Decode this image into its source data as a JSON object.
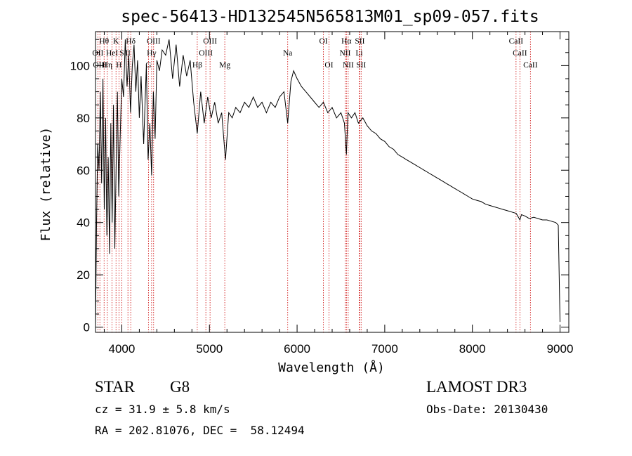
{
  "chart_data": {
    "type": "line",
    "title": "spec-56413-HD132545N565813M01_sp09-057.fits",
    "xlabel": "Wavelength (Å)",
    "ylabel": "Flux (relative)",
    "xlim": [
      3700,
      9100
    ],
    "ylim": [
      -2,
      113
    ],
    "xticks": [
      4000,
      5000,
      6000,
      7000,
      8000,
      9000
    ],
    "yticks": [
      0,
      20,
      40,
      60,
      80,
      100
    ],
    "series": [
      {
        "name": "spectrum",
        "color": "#000000",
        "points": [
          [
            3700,
            0
          ],
          [
            3712,
            40
          ],
          [
            3725,
            70
          ],
          [
            3740,
            60
          ],
          [
            3755,
            90
          ],
          [
            3770,
            55
          ],
          [
            3785,
            95
          ],
          [
            3800,
            45
          ],
          [
            3815,
            80
          ],
          [
            3830,
            35
          ],
          [
            3845,
            65
          ],
          [
            3860,
            28
          ],
          [
            3875,
            78
          ],
          [
            3890,
            40
          ],
          [
            3905,
            85
          ],
          [
            3920,
            30
          ],
          [
            3935,
            60
          ],
          [
            3950,
            90
          ],
          [
            3965,
            50
          ],
          [
            3980,
            70
          ],
          [
            4000,
            95
          ],
          [
            4020,
            88
          ],
          [
            4040,
            110
          ],
          [
            4060,
            92
          ],
          [
            4080,
            104
          ],
          [
            4100,
            82
          ],
          [
            4120,
            100
          ],
          [
            4140,
            108
          ],
          [
            4160,
            90
          ],
          [
            4180,
            102
          ],
          [
            4200,
            80
          ],
          [
            4220,
            96
          ],
          [
            4250,
            70
          ],
          [
            4280,
            100
          ],
          [
            4300,
            64
          ],
          [
            4320,
            78
          ],
          [
            4340,
            58
          ],
          [
            4360,
            90
          ],
          [
            4380,
            72
          ],
          [
            4400,
            102
          ],
          [
            4430,
            98
          ],
          [
            4460,
            106
          ],
          [
            4500,
            104
          ],
          [
            4540,
            110
          ],
          [
            4580,
            95
          ],
          [
            4620,
            108
          ],
          [
            4660,
            92
          ],
          [
            4700,
            104
          ],
          [
            4740,
            96
          ],
          [
            4780,
            102
          ],
          [
            4820,
            86
          ],
          [
            4861,
            74
          ],
          [
            4900,
            90
          ],
          [
            4940,
            78
          ],
          [
            4980,
            88
          ],
          [
            5020,
            80
          ],
          [
            5060,
            86
          ],
          [
            5100,
            78
          ],
          [
            5140,
            82
          ],
          [
            5183,
            64
          ],
          [
            5220,
            82
          ],
          [
            5260,
            80
          ],
          [
            5300,
            84
          ],
          [
            5350,
            82
          ],
          [
            5400,
            86
          ],
          [
            5450,
            84
          ],
          [
            5500,
            88
          ],
          [
            5550,
            84
          ],
          [
            5600,
            86
          ],
          [
            5650,
            82
          ],
          [
            5700,
            86
          ],
          [
            5750,
            84
          ],
          [
            5800,
            88
          ],
          [
            5850,
            90
          ],
          [
            5893,
            78
          ],
          [
            5930,
            94
          ],
          [
            5960,
            98
          ],
          [
            6000,
            95
          ],
          [
            6050,
            92
          ],
          [
            6100,
            90
          ],
          [
            6150,
            88
          ],
          [
            6200,
            86
          ],
          [
            6250,
            84
          ],
          [
            6300,
            86
          ],
          [
            6350,
            82
          ],
          [
            6400,
            84
          ],
          [
            6450,
            80
          ],
          [
            6500,
            82
          ],
          [
            6540,
            78
          ],
          [
            6563,
            66
          ],
          [
            6580,
            82
          ],
          [
            6620,
            80
          ],
          [
            6660,
            82
          ],
          [
            6700,
            78
          ],
          [
            6750,
            80
          ],
          [
            6800,
            77
          ],
          [
            6850,
            75
          ],
          [
            6900,
            74
          ],
          [
            6950,
            72
          ],
          [
            7000,
            71
          ],
          [
            7050,
            69
          ],
          [
            7100,
            68
          ],
          [
            7150,
            66
          ],
          [
            7200,
            65
          ],
          [
            7250,
            64
          ],
          [
            7300,
            63
          ],
          [
            7350,
            62
          ],
          [
            7400,
            61
          ],
          [
            7450,
            60
          ],
          [
            7500,
            59
          ],
          [
            7550,
            58
          ],
          [
            7600,
            57
          ],
          [
            7650,
            56
          ],
          [
            7700,
            55
          ],
          [
            7750,
            54
          ],
          [
            7800,
            53
          ],
          [
            7850,
            52
          ],
          [
            7900,
            51
          ],
          [
            7950,
            50
          ],
          [
            8000,
            49
          ],
          [
            8050,
            48.5
          ],
          [
            8100,
            48
          ],
          [
            8150,
            47
          ],
          [
            8200,
            46.5
          ],
          [
            8250,
            46
          ],
          [
            8300,
            45.5
          ],
          [
            8350,
            45
          ],
          [
            8400,
            44.5
          ],
          [
            8450,
            44
          ],
          [
            8500,
            43.5
          ],
          [
            8542,
            41
          ],
          [
            8560,
            43
          ],
          [
            8600,
            42.5
          ],
          [
            8650,
            41.5
          ],
          [
            8700,
            42
          ],
          [
            8750,
            41.5
          ],
          [
            8800,
            41
          ],
          [
            8850,
            41
          ],
          [
            8900,
            40.5
          ],
          [
            8950,
            40
          ],
          [
            8980,
            39
          ],
          [
            9000,
            2
          ]
        ]
      }
    ],
    "lines": [
      {
        "label": "Hθ",
        "x": 3798,
        "row": 1
      },
      {
        "label": "K",
        "x": 3934,
        "row": 1
      },
      {
        "label": "Hδ",
        "x": 4102,
        "row": 1
      },
      {
        "label": "OIII",
        "x": 4363,
        "row": 1
      },
      {
        "label": "OIII",
        "x": 5007,
        "row": 1
      },
      {
        "label": "OI",
        "x": 6300,
        "row": 1
      },
      {
        "label": "Hα",
        "x": 6563,
        "row": 1
      },
      {
        "label": "SII",
        "x": 6716,
        "row": 1
      },
      {
        "label": "CaII",
        "x": 8498,
        "row": 1
      },
      {
        "label": "OII",
        "x": 3727,
        "row": 2
      },
      {
        "label": "HeI",
        "x": 3889,
        "row": 2
      },
      {
        "label": "S",
        "x": 4000,
        "row": 2
      },
      {
        "label": "II",
        "x": 4070,
        "row": 2
      },
      {
        "label": "Hγ",
        "x": 4340,
        "row": 2
      },
      {
        "label": "OIII",
        "x": 4959,
        "row": 2
      },
      {
        "label": "Na",
        "x": 5893,
        "row": 2
      },
      {
        "label": "NII",
        "x": 6548,
        "row": 2
      },
      {
        "label": "Li",
        "x": 6708,
        "row": 2
      },
      {
        "label": "CaII",
        "x": 8542,
        "row": 2
      },
      {
        "label": "OIII",
        "x": 3750,
        "row": 3
      },
      {
        "label": "Hη",
        "x": 3835,
        "row": 3
      },
      {
        "label": "H",
        "x": 3968,
        "row": 3
      },
      {
        "label": "G",
        "x": 4304,
        "row": 3
      },
      {
        "label": "Hβ",
        "x": 4861,
        "row": 3
      },
      {
        "label": "Mg",
        "x": 5175,
        "row": 3
      },
      {
        "label": "OI",
        "x": 6364,
        "row": 3
      },
      {
        "label": "NII",
        "x": 6583,
        "row": 3
      },
      {
        "label": "SII",
        "x": 6731,
        "row": 3
      },
      {
        "label": "CaII",
        "x": 8662,
        "row": 3
      }
    ],
    "line_color": "#cc0000"
  },
  "info": {
    "object_class": "STAR",
    "subclass": "G8",
    "survey": "LAMOST DR3",
    "redshift": "cz = 31.9 ± 5.8 km/s",
    "obs_date": "Obs-Date: 20130430",
    "coords": "RA = 202.81076, DEC =  58.12494"
  }
}
